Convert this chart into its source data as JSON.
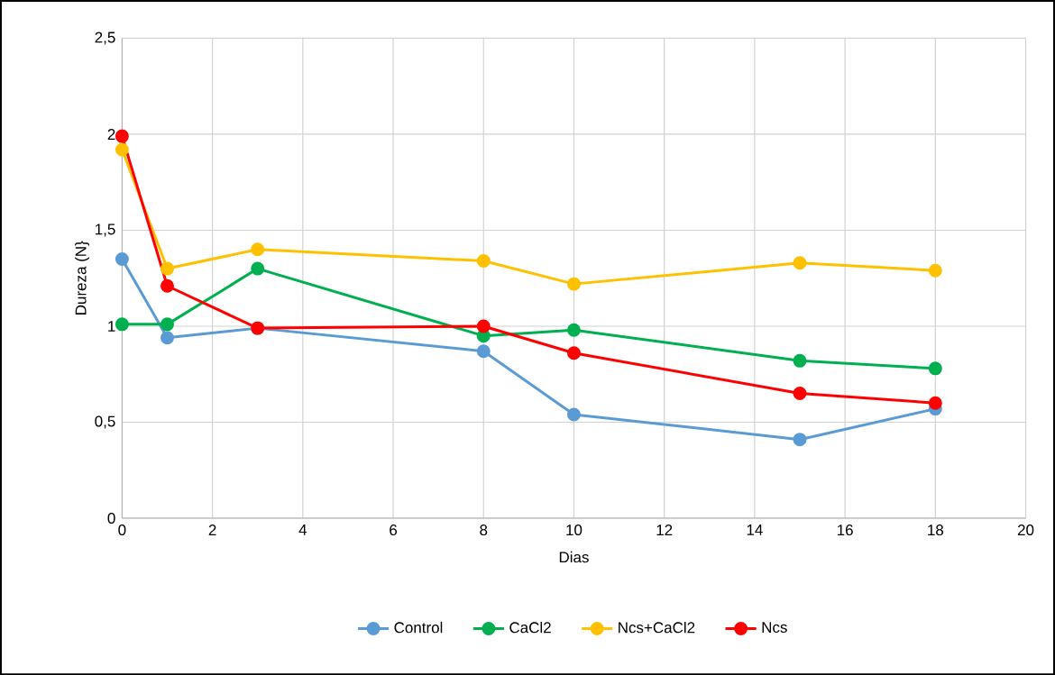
{
  "chart_data": {
    "type": "line",
    "xlabel": "Dias",
    "ylabel": "Dureza (N}",
    "x": [
      0,
      1,
      3,
      8,
      10,
      15,
      18
    ],
    "series": [
      {
        "name": "Control",
        "color": "#5b9bd5",
        "values": [
          1.35,
          0.94,
          0.99,
          0.87,
          0.54,
          0.41,
          0.57
        ]
      },
      {
        "name": "CaCl2",
        "color": "#00b050",
        "values": [
          1.01,
          1.01,
          1.3,
          0.95,
          0.98,
          0.82,
          0.78
        ]
      },
      {
        "name": "Ncs+CaCl2",
        "color": "#ffc000",
        "values": [
          1.92,
          1.3,
          1.4,
          1.34,
          1.22,
          1.33,
          1.29
        ]
      },
      {
        "name": "Ncs",
        "color": "#ff0000",
        "values": [
          1.99,
          1.21,
          0.99,
          1.0,
          0.86,
          0.65,
          0.6
        ]
      }
    ],
    "xlim": [
      0,
      20
    ],
    "xticks": [
      0,
      2,
      4,
      6,
      8,
      10,
      12,
      14,
      16,
      18,
      20
    ],
    "ylim": [
      0,
      2.5
    ],
    "yticks": [
      0,
      {
        "value": 0.5,
        "label": "0,5"
      },
      1,
      {
        "value": 1.5,
        "label": "1,5"
      },
      2,
      {
        "value": 2.5,
        "label": "2,5"
      }
    ],
    "grid": true,
    "legend": "bottom",
    "marker": "circle",
    "line_style": "solid"
  }
}
